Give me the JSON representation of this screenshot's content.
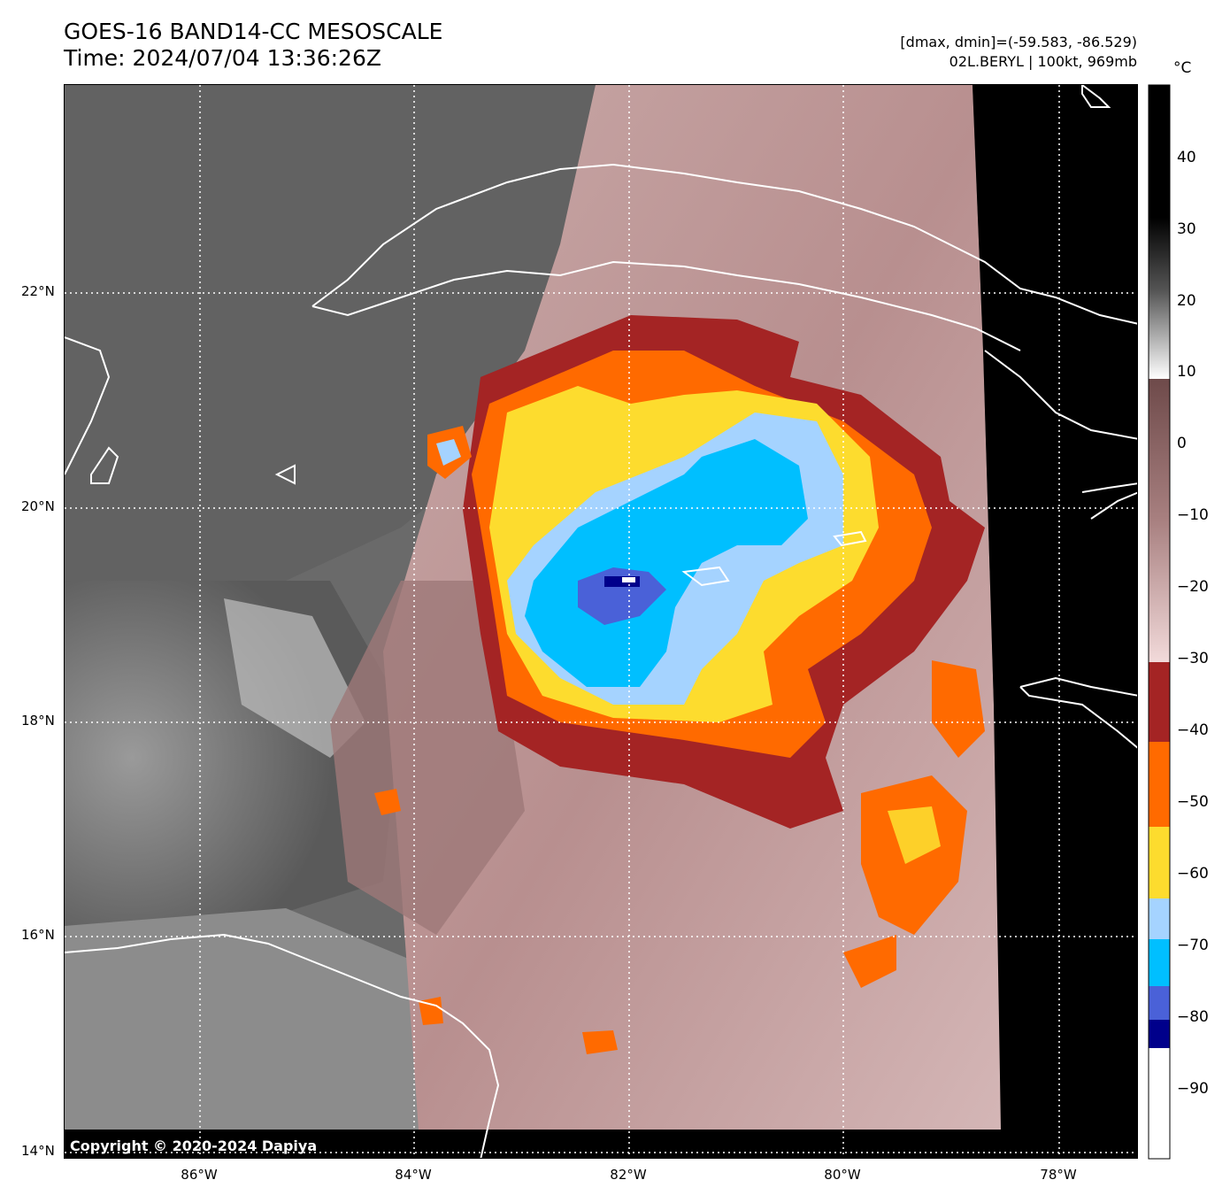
{
  "title": {
    "line1": "GOES-16 BAND14-CC MESOSCALE",
    "line2": "Time: 2024/07/04 13:36:26Z"
  },
  "info": {
    "line1": "[dmax, dmin]=(-59.583, -86.529)",
    "line2": "02L.BERYL | 100kt, 969mb"
  },
  "colorbar": {
    "unit": "°C",
    "ticks": [
      "40",
      "30",
      "20",
      "10",
      "0",
      "−10",
      "−20",
      "−30",
      "−40",
      "−50",
      "−60",
      "−70",
      "−80",
      "−90"
    ]
  },
  "axes": {
    "lat_labels": [
      "22°N",
      "20°N",
      "18°N",
      "16°N",
      "14°N"
    ],
    "lon_labels": [
      "86°W",
      "84°W",
      "82°W",
      "80°W",
      "78°W"
    ]
  },
  "copyright": "Copyright © 2020-2024 Dapiya"
}
